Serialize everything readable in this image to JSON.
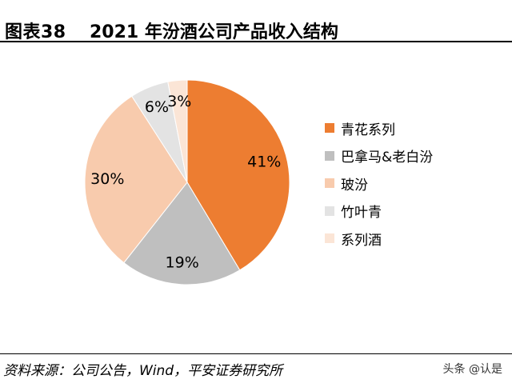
{
  "header": {
    "figure_label": "图表38",
    "title": "2021 年汾酒公司产品收入结构"
  },
  "chart_data": {
    "type": "pie",
    "title": "2021 年汾酒公司产品收入结构",
    "slices": [
      {
        "name": "青花系列",
        "value": 41,
        "label": "41%",
        "color": "#ED7D31",
        "label_color": "#000000"
      },
      {
        "name": "巴拿马&老白汾",
        "value": 19,
        "label": "19%",
        "color": "#BFBFBF",
        "label_color": "#000000"
      },
      {
        "name": "玻汾",
        "value": 30,
        "label": "30%",
        "color": "#F8CBAD",
        "label_color": "#000000"
      },
      {
        "name": "竹叶青",
        "value": 6,
        "label": "6%",
        "color": "#E3E3E3",
        "label_color": "#000000"
      },
      {
        "name": "系列酒",
        "value": 3,
        "label": "3%",
        "color": "#FBE5D6",
        "label_color": "#000000"
      }
    ],
    "start_angle_deg": 0,
    "direction": "clockwise",
    "legend_position": "right"
  },
  "footer": {
    "source": "资料来源：公司公告，Wind，平安证券研究所",
    "watermark": "头条 @认是"
  }
}
